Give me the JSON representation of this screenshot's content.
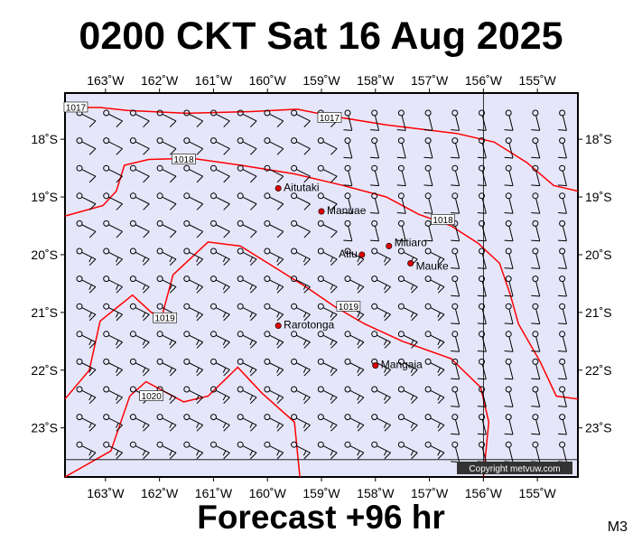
{
  "title": "0200 CKT Sat 16 Aug 2025",
  "footer": "Forecast +96 hr",
  "model_code": "M3",
  "copyright": "Copyright metvuw.com",
  "map": {
    "lon_min": -163.75,
    "lon_max": -154.25,
    "lat_min": -23.85,
    "lat_max": -17.2,
    "background_color": "#e6e6fa",
    "isobar_color": "#ff0000"
  },
  "lon_ticks": [
    -163,
    -162,
    -161,
    -160,
    -159,
    -158,
    -157,
    -156,
    -155
  ],
  "lon_labels": [
    "163˚W",
    "162˚W",
    "161˚W",
    "160˚W",
    "159˚W",
    "158˚W",
    "157˚W",
    "156˚W",
    "155˚W"
  ],
  "lat_ticks": [
    -18,
    -19,
    -20,
    -21,
    -22,
    -23
  ],
  "lat_labels": [
    "18˚S",
    "19˚S",
    "20˚S",
    "21˚S",
    "22˚S",
    "23˚S"
  ],
  "places": [
    {
      "name": "Aitutaki",
      "lon": -159.8,
      "lat": -18.85
    },
    {
      "name": "Manuae",
      "lon": -159.0,
      "lat": -19.25
    },
    {
      "name": "Atiu",
      "lon": -158.25,
      "lat": -20.0
    },
    {
      "name": "Mitiaro",
      "lon": -157.75,
      "lat": -19.85
    },
    {
      "name": "Mauke",
      "lon": -157.35,
      "lat": -20.15
    },
    {
      "name": "Rarotonga",
      "lon": -159.8,
      "lat": -21.23
    },
    {
      "name": "Mangaia",
      "lon": -158.0,
      "lat": -21.92
    }
  ],
  "isobars": [
    {
      "label": "1017",
      "points": [
        [
          -163.75,
          -17.45
        ],
        [
          -163.1,
          -17.45
        ],
        [
          -162.6,
          -17.5
        ],
        [
          -161.5,
          -17.55
        ],
        [
          -160.3,
          -17.52
        ],
        [
          -159.45,
          -17.48
        ],
        [
          -158.8,
          -17.6
        ],
        [
          -157.8,
          -17.75
        ],
        [
          -156.5,
          -17.9
        ],
        [
          -155.8,
          -18.05
        ],
        [
          -155.2,
          -18.4
        ],
        [
          -154.7,
          -18.8
        ],
        [
          -154.25,
          -18.9
        ]
      ],
      "label_at": [
        -163.55,
        -17.45
      ]
    },
    {
      "label": "1017",
      "points": [],
      "label_at": [
        -158.85,
        -17.63
      ]
    },
    {
      "label": "1018",
      "points": [
        [
          -163.75,
          -19.33
        ],
        [
          -163.05,
          -19.15
        ],
        [
          -162.8,
          -18.9
        ],
        [
          -162.65,
          -18.45
        ],
        [
          -162.2,
          -18.35
        ],
        [
          -161.4,
          -18.33
        ],
        [
          -160.5,
          -18.45
        ],
        [
          -159.5,
          -18.6
        ],
        [
          -158.6,
          -18.8
        ],
        [
          -157.8,
          -19.0
        ],
        [
          -157.2,
          -19.3
        ],
        [
          -156.6,
          -19.5
        ],
        [
          -156.1,
          -19.8
        ],
        [
          -155.7,
          -20.15
        ],
        [
          -155.5,
          -20.7
        ],
        [
          -155.35,
          -21.2
        ],
        [
          -154.95,
          -21.85
        ],
        [
          -154.65,
          -22.45
        ],
        [
          -154.25,
          -22.5
        ]
      ],
      "label_at": [
        -161.55,
        -18.35
      ]
    },
    {
      "label": "1018",
      "points": [],
      "label_at": [
        -156.75,
        -19.4
      ]
    },
    {
      "label": "1019",
      "points": [
        [
          -163.75,
          -22.5
        ],
        [
          -163.3,
          -22.0
        ],
        [
          -163.1,
          -21.15
        ],
        [
          -162.5,
          -20.7
        ],
        [
          -162.15,
          -21.0
        ],
        [
          -161.95,
          -21.05
        ],
        [
          -161.75,
          -20.35
        ],
        [
          -161.1,
          -19.78
        ],
        [
          -160.5,
          -19.85
        ],
        [
          -159.9,
          -20.2
        ],
        [
          -159.3,
          -20.55
        ],
        [
          -158.75,
          -20.9
        ],
        [
          -158.2,
          -21.2
        ],
        [
          -157.5,
          -21.5
        ],
        [
          -156.6,
          -21.8
        ],
        [
          -156.05,
          -22.3
        ],
        [
          -155.9,
          -22.9
        ],
        [
          -156.0,
          -23.85
        ]
      ],
      "label_at": [
        -161.9,
        -21.1
      ]
    },
    {
      "label": "1019",
      "points": [],
      "label_at": [
        -158.5,
        -20.9
      ]
    },
    {
      "label": "1020",
      "points": [
        [
          -163.75,
          -23.85
        ],
        [
          -162.9,
          -23.4
        ],
        [
          -162.55,
          -22.45
        ],
        [
          -162.25,
          -22.2
        ],
        [
          -161.55,
          -22.55
        ],
        [
          -161.1,
          -22.45
        ],
        [
          -160.55,
          -21.95
        ],
        [
          -160.1,
          -22.4
        ],
        [
          -159.5,
          -22.9
        ],
        [
          -159.4,
          -23.85
        ]
      ],
      "label_at": [
        -162.15,
        -22.45
      ]
    }
  ]
}
